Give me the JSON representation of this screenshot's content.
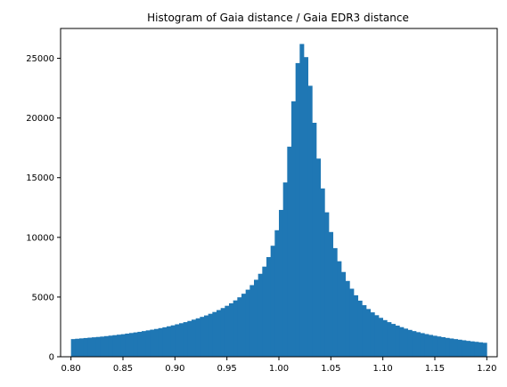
{
  "chart_data": {
    "type": "bar",
    "title": "Histogram of Gaia distance / Gaia EDR3 distance",
    "xlabel": "",
    "ylabel": "",
    "xlim": [
      0.79,
      1.21
    ],
    "ylim": [
      0,
      27500
    ],
    "bin_start": 0.8,
    "bin_width": 0.004,
    "values": [
      1480,
      1510,
      1540,
      1570,
      1600,
      1630,
      1660,
      1690,
      1730,
      1770,
      1810,
      1850,
      1890,
      1940,
      1990,
      2040,
      2090,
      2150,
      2210,
      2270,
      2330,
      2400,
      2470,
      2550,
      2630,
      2720,
      2810,
      2900,
      3000,
      3110,
      3220,
      3340,
      3460,
      3600,
      3750,
      3910,
      4080,
      4270,
      4480,
      4720,
      4980,
      5280,
      5620,
      6000,
      6450,
      6950,
      7550,
      8350,
      9300,
      10600,
      12300,
      14600,
      17600,
      21400,
      24600,
      26200,
      25100,
      22700,
      19600,
      16600,
      14100,
      12100,
      10450,
      9100,
      8000,
      7100,
      6350,
      5700,
      5150,
      4700,
      4320,
      4000,
      3720,
      3480,
      3260,
      3070,
      2900,
      2750,
      2610,
      2480,
      2360,
      2250,
      2150,
      2060,
      1980,
      1900,
      1830,
      1760,
      1700,
      1640,
      1580,
      1530,
      1480,
      1430,
      1380,
      1330,
      1290,
      1250,
      1210,
      1170
    ],
    "color": "#1f77b4",
    "x_ticks": [
      0.8,
      0.85,
      0.9,
      0.95,
      1.0,
      1.05,
      1.1,
      1.15,
      1.2
    ],
    "x_tick_labels": [
      "0.80",
      "0.85",
      "0.90",
      "0.95",
      "1.00",
      "1.05",
      "1.10",
      "1.15",
      "1.20"
    ],
    "y_ticks": [
      0,
      5000,
      10000,
      15000,
      20000,
      25000
    ],
    "y_tick_labels": [
      "0",
      "5000",
      "10000",
      "15000",
      "20000",
      "25000"
    ],
    "grid": false,
    "legend": "none"
  }
}
